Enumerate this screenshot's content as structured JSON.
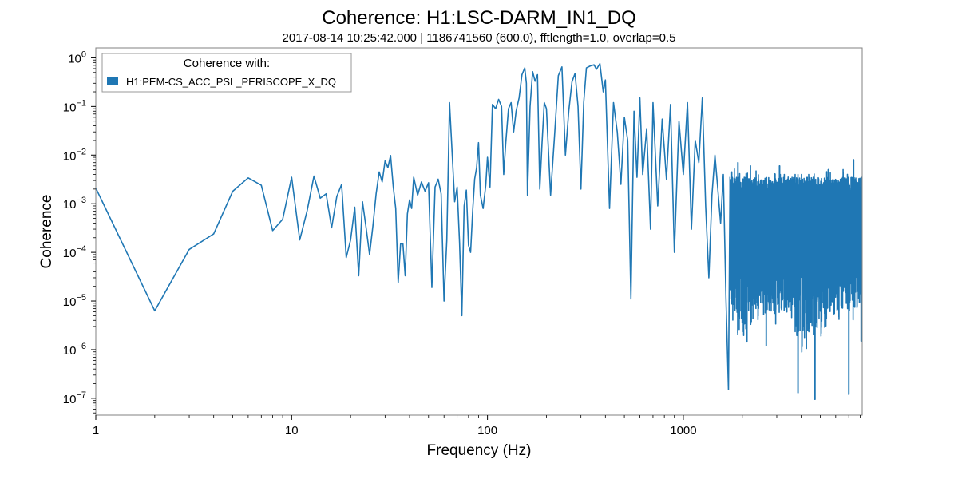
{
  "chart_data": {
    "type": "line",
    "title": "Coherence: H1:LSC-DARM_IN1_DQ",
    "subtitle": "2017-08-14 10:25:42.000 | 1186741560 (600.0), fftlength=1.0, overlap=0.5",
    "xlabel": "Frequency (Hz)",
    "ylabel": "Coherence",
    "xscale": "log",
    "yscale": "log",
    "xlim": [
      1,
      8192
    ],
    "ylim": [
      4.5e-08,
      1.6
    ],
    "x_ticks": [
      {
        "value": 1,
        "label": "1"
      },
      {
        "value": 10,
        "label": "10"
      },
      {
        "value": 100,
        "label": "100"
      },
      {
        "value": 1000,
        "label": "1000"
      }
    ],
    "y_ticks": [
      {
        "value": 1e-07,
        "mant": "10",
        "exp": "−7"
      },
      {
        "value": 1e-06,
        "mant": "10",
        "exp": "−6"
      },
      {
        "value": 1e-05,
        "mant": "10",
        "exp": "−5"
      },
      {
        "value": 0.0001,
        "mant": "10",
        "exp": "−4"
      },
      {
        "value": 0.001,
        "mant": "10",
        "exp": "−3"
      },
      {
        "value": 0.01,
        "mant": "10",
        "exp": "−2"
      },
      {
        "value": 0.1,
        "mant": "10",
        "exp": "−1"
      },
      {
        "value": 1,
        "mant": "10",
        "exp": "0"
      }
    ],
    "legend": {
      "title": "Coherence with:",
      "placement": "top-left"
    },
    "series": [
      {
        "name": "H1:PEM-CS_ACC_PSL_PERISCOPE_X_DQ",
        "color": "#1f77b4",
        "points": [
          [
            1,
            0.0021
          ],
          [
            2,
            6.3e-06
          ],
          [
            3,
            0.000115
          ],
          [
            4,
            0.00024
          ],
          [
            5,
            0.0018
          ],
          [
            6,
            0.0034
          ],
          [
            7,
            0.0024
          ],
          [
            8,
            0.00028
          ],
          [
            9,
            0.00048
          ],
          [
            10,
            0.0035
          ],
          [
            11,
            0.00018
          ],
          [
            12,
            0.00072
          ],
          [
            13,
            0.0037
          ],
          [
            14,
            0.0013
          ],
          [
            15,
            0.0016
          ],
          [
            16,
            0.00032
          ],
          [
            17,
            0.0014
          ],
          [
            18,
            0.0025
          ],
          [
            19,
            7.8e-05
          ],
          [
            20,
            0.00018
          ],
          [
            21,
            0.00085
          ],
          [
            22,
            3.3e-05
          ],
          [
            23,
            0.0011
          ],
          [
            24,
            0.00032
          ],
          [
            25,
            9e-05
          ],
          [
            26,
            0.00035
          ],
          [
            27,
            0.0016
          ],
          [
            28,
            0.0045
          ],
          [
            29,
            0.0028
          ],
          [
            30,
            0.0076
          ],
          [
            31,
            0.0055
          ],
          [
            32,
            0.0098
          ],
          [
            33,
            0.0023
          ],
          [
            34,
            0.0008
          ],
          [
            35,
            2.4e-05
          ],
          [
            36,
            0.00015
          ],
          [
            37,
            0.00015
          ],
          [
            38,
            3.3e-05
          ],
          [
            39,
            0.00062
          ],
          [
            40,
            0.0012
          ],
          [
            41,
            0.0008
          ],
          [
            42,
            0.0035
          ],
          [
            44,
            0.0015
          ],
          [
            46,
            0.0028
          ],
          [
            48,
            0.0018
          ],
          [
            50,
            0.0027
          ],
          [
            52,
            1.9e-05
          ],
          [
            54,
            0.0022
          ],
          [
            56,
            0.0032
          ],
          [
            58,
            0.0016
          ],
          [
            60,
            1e-05
          ],
          [
            62,
            0.00018
          ],
          [
            64,
            0.12
          ],
          [
            66,
            0.011
          ],
          [
            68,
            0.0011
          ],
          [
            70,
            0.0022
          ],
          [
            72,
            0.00016
          ],
          [
            74,
            5e-06
          ],
          [
            76,
            0.0009
          ],
          [
            78,
            0.0019
          ],
          [
            80,
            0.00014
          ],
          [
            82,
            0.0001
          ],
          [
            84,
            0.0007
          ],
          [
            86,
            0.0032
          ],
          [
            88,
            0.0055
          ],
          [
            90,
            0.018
          ],
          [
            92,
            0.0015
          ],
          [
            95,
            0.0008
          ],
          [
            98,
            0.0024
          ],
          [
            100,
            0.009
          ],
          [
            103,
            0.0022
          ],
          [
            106,
            0.11
          ],
          [
            110,
            0.09
          ],
          [
            114,
            0.14
          ],
          [
            118,
            0.1
          ],
          [
            121,
            0.004
          ],
          [
            124,
            0.018
          ],
          [
            128,
            0.09
          ],
          [
            132,
            0.12
          ],
          [
            136,
            0.03
          ],
          [
            140,
            0.08
          ],
          [
            145,
            0.15
          ],
          [
            150,
            0.45
          ],
          [
            155,
            0.62
          ],
          [
            158,
            0.3
          ],
          [
            160,
            0.0015
          ],
          [
            165,
            0.1
          ],
          [
            170,
            0.52
          ],
          [
            175,
            0.33
          ],
          [
            180,
            0.45
          ],
          [
            185,
            0.002
          ],
          [
            190,
            0.018
          ],
          [
            195,
            0.12
          ],
          [
            200,
            0.09
          ],
          [
            210,
            0.0015
          ],
          [
            220,
            0.025
          ],
          [
            230,
            0.43
          ],
          [
            240,
            0.65
          ],
          [
            250,
            0.01
          ],
          [
            260,
            0.08
          ],
          [
            270,
            0.32
          ],
          [
            280,
            0.48
          ],
          [
            290,
            0.1
          ],
          [
            300,
            0.002
          ],
          [
            310,
            0.12
          ],
          [
            320,
            0.62
          ],
          [
            335,
            0.68
          ],
          [
            350,
            0.72
          ],
          [
            360,
            0.58
          ],
          [
            375,
            0.76
          ],
          [
            390,
            0.2
          ],
          [
            400,
            0.35
          ],
          [
            420,
            0.0008
          ],
          [
            440,
            0.12
          ],
          [
            460,
            0.03
          ],
          [
            480,
            0.0025
          ],
          [
            500,
            0.06
          ],
          [
            520,
            0.02
          ],
          [
            540,
            1.1e-05
          ],
          [
            560,
            0.08
          ],
          [
            580,
            0.0035
          ],
          [
            600,
            0.15
          ],
          [
            620,
            0.004
          ],
          [
            650,
            0.035
          ],
          [
            680,
            0.0003
          ],
          [
            700,
            0.12
          ],
          [
            740,
            0.0009
          ],
          [
            780,
            0.055
          ],
          [
            820,
            0.0032
          ],
          [
            860,
            0.11
          ],
          [
            900,
            0.0001
          ],
          [
            950,
            0.05
          ],
          [
            1000,
            0.004
          ],
          [
            1050,
            0.12
          ],
          [
            1100,
            0.0003
          ],
          [
            1150,
            0.02
          ],
          [
            1200,
            0.007
          ],
          [
            1250,
            0.15
          ],
          [
            1300,
            0.0009
          ],
          [
            1350,
            3e-05
          ],
          [
            1400,
            0.0015
          ],
          [
            1450,
            0.01
          ],
          [
            1500,
            0.002
          ],
          [
            1550,
            0.0004
          ],
          [
            1600,
            0.004
          ],
          [
            1650,
            1.2e-05
          ],
          [
            1700,
            1.5e-07
          ],
          [
            1730,
            0.002
          ]
        ],
        "noise_band": {
          "x_start": 1730,
          "x_end": 8192,
          "lower_envelope": [
            [
              1730,
              5e-06
            ],
            [
              2000,
              8e-07
            ],
            [
              2500,
              5e-06
            ],
            [
              3000,
              2e-06
            ],
            [
              3500,
              4e-06
            ],
            [
              4000,
              6e-07
            ],
            [
              4500,
              1e-06
            ],
            [
              5000,
              1.5e-06
            ],
            [
              6000,
              3e-06
            ],
            [
              7000,
              4e-06
            ],
            [
              8192,
              3e-06
            ]
          ],
          "upper_envelope": [
            [
              1730,
              0.006
            ],
            [
              2000,
              0.004
            ],
            [
              2500,
              0.005
            ],
            [
              3000,
              0.004
            ],
            [
              3500,
              0.004
            ],
            [
              4000,
              0.004
            ],
            [
              4500,
              0.004
            ],
            [
              5000,
              0.005
            ],
            [
              6000,
              0.004
            ],
            [
              7000,
              0.006
            ],
            [
              8192,
              0.005
            ]
          ],
          "core_range": [
            3e-05,
            0.0035
          ],
          "deep_spikes": [
            [
              1700,
              1.5e-07
            ],
            [
              2650,
              1.2e-06
            ],
            [
              3850,
              1.3e-07
            ],
            [
              4700,
              9.5e-08
            ],
            [
              7000,
              1.2e-07
            ],
            [
              8100,
              1.5e-06
            ]
          ],
          "high_spikes": [
            [
              1900,
              0.007
            ],
            [
              2200,
              0.006
            ],
            [
              3100,
              0.006
            ],
            [
              5500,
              0.005
            ],
            [
              7400,
              0.008
            ]
          ]
        }
      }
    ]
  }
}
